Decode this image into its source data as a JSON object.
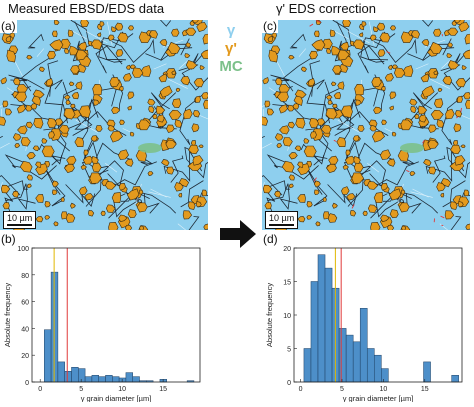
{
  "titles": {
    "left": "Measured EBSD/EDS data",
    "right": "γ' EDS correction"
  },
  "panels": {
    "a": "(a)",
    "b": "(b)",
    "c": "(c)",
    "d": "(d)"
  },
  "legend": {
    "gamma": {
      "label": "γ",
      "color": "#8ecfee"
    },
    "gamma_prime": {
      "label": "γ'",
      "color": "#e39a1e"
    },
    "mc": {
      "label": "MC",
      "color": "#7cc08a"
    }
  },
  "scale_bar": "10 µm",
  "colors": {
    "matrix": "#8ecfee",
    "precipitate": "#e39a1e",
    "boundary": "#1e2a36",
    "bar_fill": "#4d8fc9",
    "mean_line": "#e0b800",
    "median_line": "#e03a3a"
  },
  "chart_data": [
    {
      "type": "bar",
      "panel": "(b)",
      "xlabel": "γ grain diameter [µm]",
      "ylabel": "Absolute frequency",
      "xlim": [
        -1,
        19.5
      ],
      "ylim": [
        0,
        100
      ],
      "xticks": [
        "0",
        "5",
        "10",
        "15"
      ],
      "yticks": [
        "0",
        "20",
        "40",
        "60",
        "80",
        "100"
      ],
      "bin_width": 0.83,
      "bin_starts": [
        0.5,
        1.33,
        2.16,
        2.99,
        3.82,
        4.65,
        5.48,
        6.31,
        7.14,
        7.97,
        8.8,
        9.63,
        10.46,
        11.29,
        12.12,
        12.95,
        13.78,
        14.61,
        15.44,
        16.27,
        17.1,
        17.93
      ],
      "values": [
        39,
        82,
        15,
        8,
        11,
        10,
        4,
        5,
        4,
        5,
        4,
        3,
        7,
        4,
        1,
        1,
        0,
        2,
        0,
        0,
        0,
        1
      ],
      "vlines": [
        {
          "x": 1.7,
          "color": "#e0b800"
        },
        {
          "x": 3.3,
          "color": "#e03a3a"
        }
      ]
    },
    {
      "type": "bar",
      "panel": "(d)",
      "xlabel": "γ grain diameter [µm]",
      "ylabel": "Absolute frequency",
      "xlim": [
        -0.8,
        19.5
      ],
      "ylim": [
        0,
        20
      ],
      "xticks": [
        "0",
        "5",
        "10",
        "15"
      ],
      "yticks": [
        "0",
        "5",
        "10",
        "15",
        "20"
      ],
      "bin_width": 0.85,
      "bin_starts": [
        0.4,
        1.25,
        2.1,
        2.95,
        3.8,
        4.65,
        5.5,
        6.35,
        7.2,
        8.05,
        8.9,
        9.75,
        10.6,
        11.45,
        12.3,
        13.15,
        14.0,
        14.85,
        15.7,
        16.55,
        17.4,
        18.25
      ],
      "values": [
        5,
        15,
        19,
        17,
        14,
        8,
        7,
        6,
        11,
        5,
        4,
        2,
        0,
        0,
        0,
        0,
        0,
        3,
        0,
        0,
        0,
        1
      ],
      "vlines": [
        {
          "x": 4.2,
          "color": "#e0b800"
        },
        {
          "x": 4.9,
          "color": "#e03a3a"
        }
      ]
    }
  ]
}
